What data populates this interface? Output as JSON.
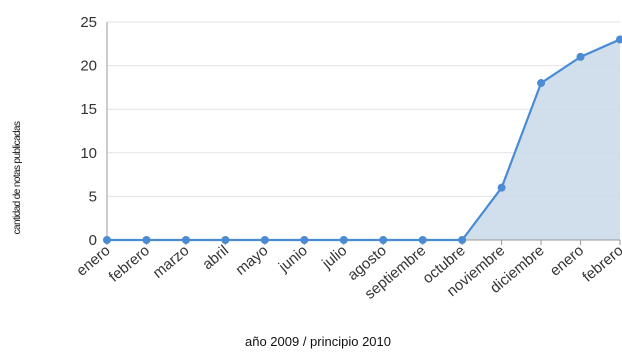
{
  "chart_data": {
    "type": "area",
    "title": "",
    "xlabel": "año 2009 / principio 2010",
    "ylabel": "cantidad de notas publicadas",
    "categories": [
      "enero",
      "febrero",
      "marzo",
      "abril",
      "mayo",
      "junio",
      "julio",
      "agosto",
      "septiembre",
      "octubre",
      "noviembre",
      "diciembre",
      "enero",
      "febrero"
    ],
    "series": [
      {
        "values": [
          0,
          0,
          0,
          0,
          0,
          0,
          0,
          0,
          0,
          0,
          6,
          18,
          21,
          23
        ]
      }
    ],
    "ylim": [
      0,
      25
    ],
    "yticks": [
      "0",
      "5",
      "10",
      "15",
      "20",
      "25"
    ],
    "grid": true,
    "legend": "none",
    "colors": {
      "line": "#4a8bd4",
      "fill": "#c9d9ea",
      "grid": "#e3e3e3",
      "axis": "#999999"
    }
  }
}
